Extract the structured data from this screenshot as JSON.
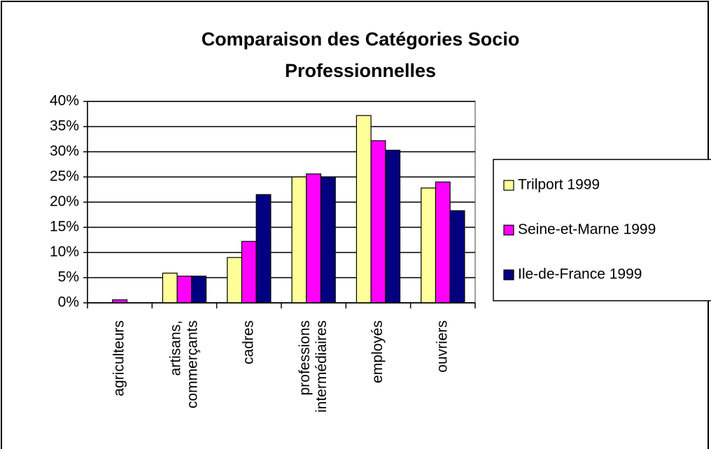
{
  "chart_data": {
    "type": "bar",
    "title": [
      "Comparaison des Catégories Socio",
      "Professionnelles"
    ],
    "categories": [
      "agriculteurs",
      "artisans,\ncommerçants",
      "cadres",
      "professions\nintermédiaires",
      "employés",
      "ouvriers"
    ],
    "series": [
      {
        "name": "Trilport 1999",
        "color": "#ffff99",
        "values": [
          0,
          5.9,
          9.0,
          25.0,
          37.2,
          22.8
        ]
      },
      {
        "name": "Seine-et-Marne 1999",
        "color": "#ff00ff",
        "values": [
          0.6,
          5.3,
          12.2,
          25.6,
          32.2,
          24.0
        ]
      },
      {
        "name": "Ile-de-France 1999",
        "color": "#000080",
        "values": [
          0,
          5.3,
          21.5,
          25.0,
          30.3,
          18.3
        ]
      }
    ],
    "ylim": [
      0,
      40
    ],
    "yticks": [
      {
        "value": 0,
        "label": "0%"
      },
      {
        "value": 5,
        "label": "5%"
      },
      {
        "value": 10,
        "label": "10%"
      },
      {
        "value": 15,
        "label": "15%"
      },
      {
        "value": 20,
        "label": "20%"
      },
      {
        "value": 25,
        "label": "25%"
      },
      {
        "value": 30,
        "label": "30%"
      },
      {
        "value": 35,
        "label": "35%"
      },
      {
        "value": 40,
        "label": "40%"
      }
    ],
    "grid": true,
    "legend": "right"
  }
}
